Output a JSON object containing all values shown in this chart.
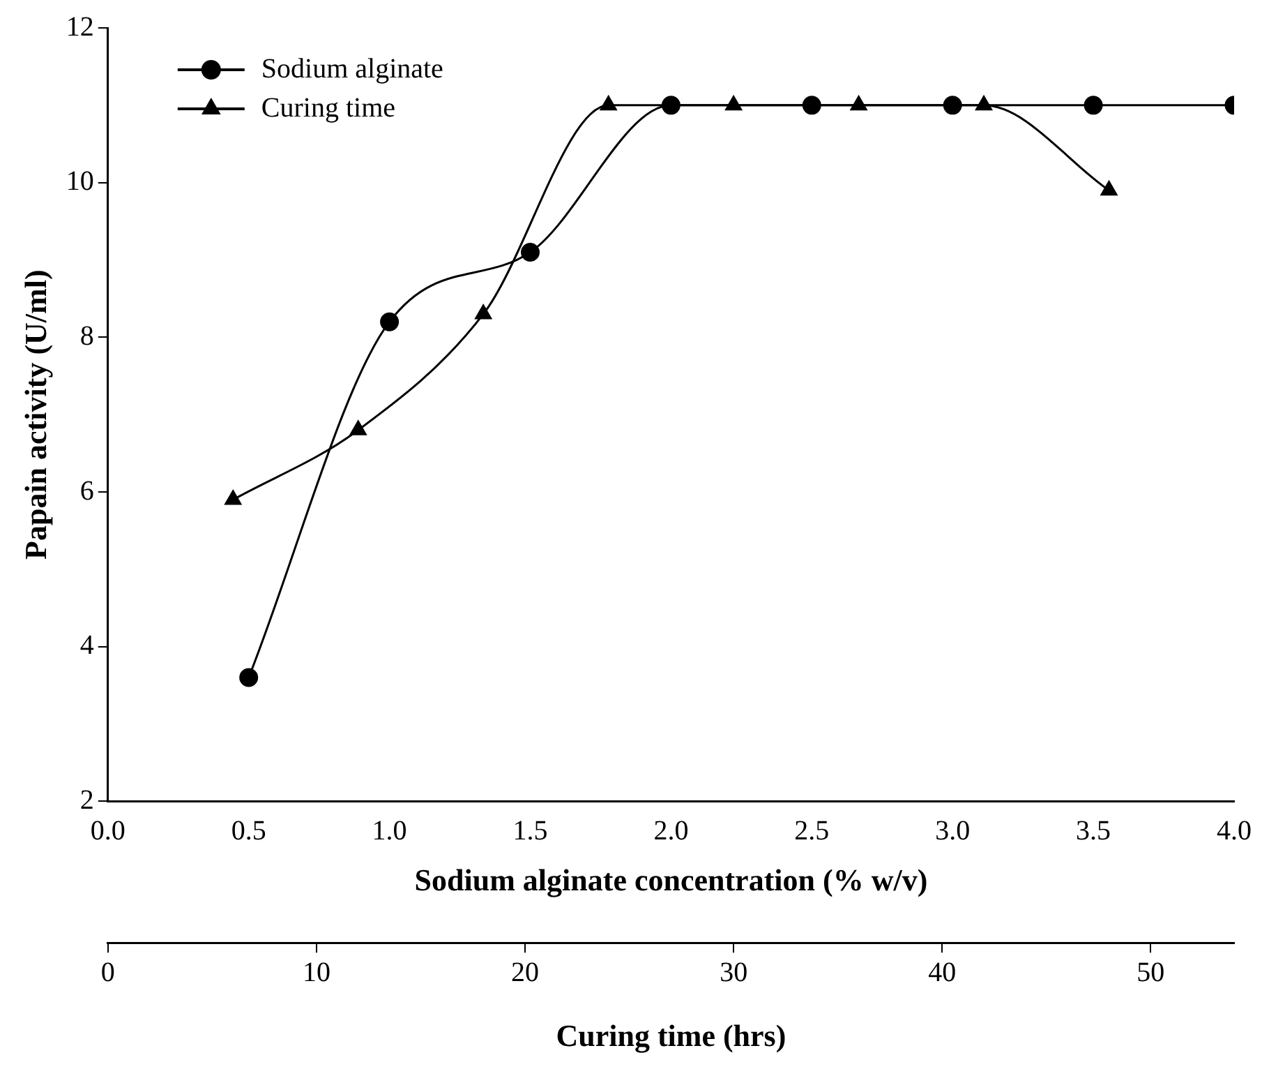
{
  "chart_data": {
    "type": "line",
    "xlabel": "Sodium alginate concentration (% w/v)",
    "x2label": "Curing time (hrs)",
    "ylabel": "Papain activity (U/ml)",
    "xlim": [
      0,
      4
    ],
    "xticks": [
      {
        "value": 0,
        "label": "0.0"
      },
      {
        "value": 0.5,
        "label": "0.5"
      },
      {
        "value": 1,
        "label": "1.0"
      },
      {
        "value": 1.5,
        "label": "1.5"
      },
      {
        "value": 2,
        "label": "2.0"
      },
      {
        "value": 2.5,
        "label": "2.5"
      },
      {
        "value": 3,
        "label": "3.0"
      },
      {
        "value": 3.5,
        "label": "3.5"
      },
      {
        "value": 4,
        "label": "4.0"
      }
    ],
    "x2lim": [
      0,
      54
    ],
    "x2ticks": [
      0,
      10,
      20,
      30,
      40,
      50
    ],
    "ylim": [
      2,
      12
    ],
    "yticks": [
      2,
      4,
      6,
      8,
      10,
      12
    ],
    "grid": false,
    "legend": "top left",
    "series": [
      {
        "name": "Sodium alginate",
        "color": "#000000",
        "marker": "circle",
        "x": [
          0.5,
          1,
          1.5,
          2,
          2.5,
          3,
          3.5,
          4
        ],
        "values": [
          3.6,
          8.2,
          9.1,
          11,
          11,
          11,
          11,
          11
        ]
      },
      {
        "name": "Curing time",
        "color": "#000000",
        "marker": "triangle",
        "axis": "x2",
        "x": [
          6,
          12,
          18,
          24,
          30,
          36,
          42,
          48
        ],
        "values": [
          5.9,
          6.8,
          8.3,
          11,
          11,
          11,
          11,
          9.9
        ]
      }
    ]
  }
}
